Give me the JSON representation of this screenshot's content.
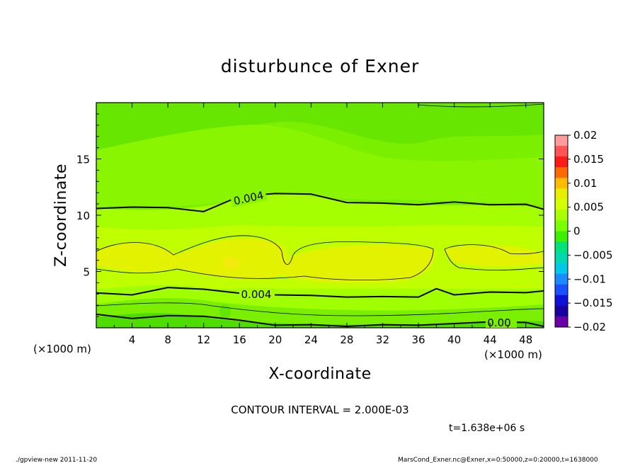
{
  "chart_data": {
    "type": "heatmap",
    "title": "disturbunce of Exner",
    "xlabel": "X-coordinate",
    "ylabel": "Z-coordinate",
    "x_unit": "(×1000 m)",
    "y_unit": "(×1000 m)",
    "xlim": [
      0,
      50
    ],
    "ylim": [
      0,
      20
    ],
    "xticks": [
      4,
      8,
      12,
      16,
      20,
      24,
      28,
      32,
      36,
      40,
      44,
      48
    ],
    "yticks": [
      5,
      10,
      15
    ],
    "colorbar": {
      "levels": [
        0.02,
        0.015,
        0.01,
        0.005,
        0,
        -0.005,
        -0.01,
        -0.015,
        -0.02
      ],
      "labels": [
        "0.02",
        "0.015",
        "0.01",
        "0.005",
        "0",
        "−0.005",
        "−0.01",
        "−0.015",
        "−0.02"
      ],
      "colors": [
        "#ff9c9c",
        "#ff5555",
        "#ff1a1a",
        "#ff6a00",
        "#ffbb00",
        "#e6ef00",
        "#d4ff00",
        "#a9ff00",
        "#78ff00",
        "#3cf000",
        "#00e27a",
        "#00d9b0",
        "#00c8e8",
        "#1a8cff",
        "#1a50ff",
        "#1010d8",
        "#1a00a0",
        "#6a00a8"
      ]
    },
    "contour_interval": "CONTOUR INTERVAL = 2.000E-03",
    "contour_labels": [
      "0.004",
      "0.004",
      "0.00"
    ],
    "contour_lines": [
      {
        "value": 0.004,
        "points": [
          [
            0,
            10.6
          ],
          [
            4,
            10.8
          ],
          [
            8,
            10.6
          ],
          [
            12,
            10.4
          ],
          [
            16,
            11.6
          ],
          [
            20,
            12.0
          ],
          [
            24,
            11.8
          ],
          [
            28,
            11.2
          ],
          [
            32,
            11.0
          ],
          [
            36,
            11.0
          ],
          [
            40,
            11.1
          ],
          [
            44,
            11.0
          ],
          [
            48,
            10.9
          ],
          [
            50,
            10.6
          ]
        ]
      },
      {
        "value": 0.004,
        "points": [
          [
            0,
            3.1
          ],
          [
            4,
            3.0
          ],
          [
            8,
            3.5
          ],
          [
            12,
            3.5
          ],
          [
            16,
            3.0
          ],
          [
            20,
            3.0
          ],
          [
            24,
            2.8
          ],
          [
            28,
            2.8
          ],
          [
            32,
            2.7
          ],
          [
            36,
            2.8
          ],
          [
            38,
            3.4
          ],
          [
            40,
            3.0
          ],
          [
            44,
            3.1
          ],
          [
            48,
            3.2
          ],
          [
            50,
            3.2
          ]
        ]
      },
      {
        "value": 0.0,
        "points": [
          [
            0,
            1.2
          ],
          [
            4,
            0.9
          ],
          [
            8,
            1.0
          ],
          [
            12,
            1.1
          ],
          [
            16,
            0.6
          ],
          [
            20,
            0.3
          ],
          [
            24,
            0.2
          ],
          [
            28,
            0.2
          ],
          [
            32,
            0.2
          ],
          [
            36,
            0.3
          ],
          [
            40,
            0.3
          ],
          [
            44,
            0.6
          ],
          [
            48,
            0.4
          ],
          [
            50,
            0.2
          ]
        ]
      }
    ]
  },
  "annotations": {
    "time": "t=1.638e+06 s",
    "footer_left": "./gpview-new   2011-11-20",
    "footer_right": "MarsCond_Exner.nc@Exner,x=0:50000,z=0:20000,t=1638000"
  }
}
